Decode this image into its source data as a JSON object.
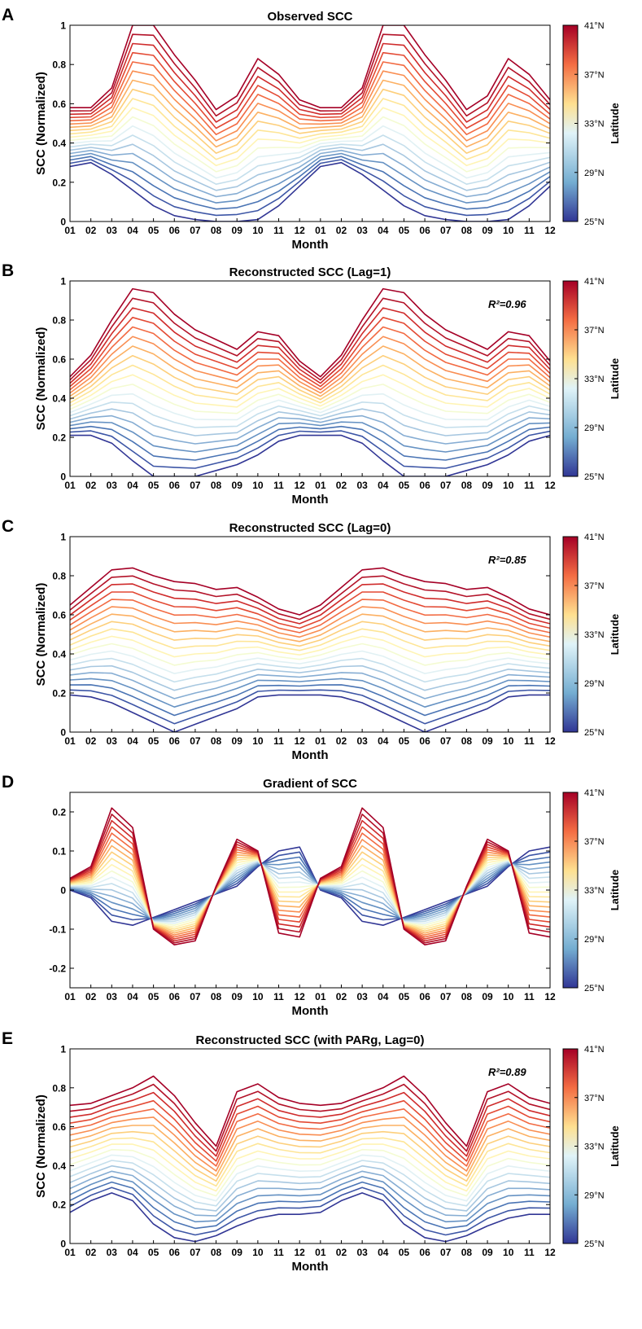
{
  "figure": {
    "legend_title": "Latitude",
    "colorbar_ticks": [
      "41°N",
      "37°N",
      "33°N",
      "29°N",
      "25°N"
    ],
    "colors": [
      "#313695",
      "#3d56a6",
      "#4a74b4",
      "#6692c3",
      "#86add3",
      "#a7c7e0",
      "#c5dfec",
      "#e1f1f4",
      "#f4fbd2",
      "#fff4b4",
      "#fee596",
      "#fdcf7b",
      "#fcb062",
      "#f98e52",
      "#f26a42",
      "#e34933",
      "#cf2b2b",
      "#b31228",
      "#a50026"
    ],
    "colorbar_stops": [
      "#313695",
      "#74add1",
      "#e0f3f8",
      "#fee090",
      "#f46d43",
      "#a50026"
    ]
  },
  "chart_data": [
    {
      "panel": "A",
      "type": "line",
      "title": "Observed SCC",
      "xlabel": "Month",
      "ylabel": "SCC (Normalized)",
      "ylim": [
        0,
        1
      ],
      "yticks": [
        "0",
        "0.2",
        "0.4",
        "0.6",
        "0.8",
        "1"
      ],
      "months": [
        "01",
        "02",
        "03",
        "04",
        "05",
        "06",
        "07",
        "08",
        "09",
        "10",
        "11",
        "12",
        "01",
        "02",
        "03",
        "04",
        "05",
        "06",
        "07",
        "08",
        "09",
        "10",
        "11",
        "12"
      ],
      "r2_label": "",
      "series_min": [
        0.28,
        0.3,
        0.24,
        0.16,
        0.08,
        0.03,
        0.01,
        0.0,
        0.0,
        0.01,
        0.08,
        0.18
      ],
      "series_max": [
        0.58,
        0.58,
        0.68,
        1.0,
        1.0,
        0.85,
        0.72,
        0.57,
        0.64,
        0.83,
        0.75,
        0.62
      ]
    },
    {
      "panel": "B",
      "type": "line",
      "title": "Reconstructed SCC (Lag=1)",
      "xlabel": "Month",
      "ylabel": "SCC (Normalized)",
      "ylim": [
        0,
        1
      ],
      "yticks": [
        "0",
        "0.2",
        "0.4",
        "0.6",
        "0.8",
        "1"
      ],
      "months": [
        "01",
        "02",
        "03",
        "04",
        "05",
        "06",
        "07",
        "08",
        "09",
        "10",
        "11",
        "12",
        "01",
        "02",
        "03",
        "04",
        "05",
        "06",
        "07",
        "08",
        "09",
        "10",
        "11",
        "12"
      ],
      "r2_label": "R²=0.96",
      "series_min": [
        0.21,
        0.21,
        0.17,
        0.08,
        0.0,
        0.0,
        0.0,
        0.03,
        0.06,
        0.11,
        0.18,
        0.21
      ],
      "series_max": [
        0.51,
        0.62,
        0.8,
        0.96,
        0.94,
        0.83,
        0.75,
        0.7,
        0.65,
        0.74,
        0.72,
        0.59
      ]
    },
    {
      "panel": "C",
      "type": "line",
      "title": "Reconstructed SCC (Lag=0)",
      "xlabel": "Month",
      "ylabel": "SCC (Normalized)",
      "ylim": [
        0,
        1
      ],
      "yticks": [
        "0",
        "0.2",
        "0.4",
        "0.6",
        "0.8",
        "1"
      ],
      "months": [
        "01",
        "02",
        "03",
        "04",
        "05",
        "06",
        "07",
        "08",
        "09",
        "10",
        "11",
        "12",
        "01",
        "02",
        "03",
        "04",
        "05",
        "06",
        "07",
        "08",
        "09",
        "10",
        "11",
        "12"
      ],
      "r2_label": "R²=0.85",
      "series_min": [
        0.19,
        0.18,
        0.15,
        0.1,
        0.05,
        0.0,
        0.04,
        0.08,
        0.12,
        0.18,
        0.19,
        0.19
      ],
      "series_max": [
        0.65,
        0.74,
        0.83,
        0.84,
        0.8,
        0.77,
        0.76,
        0.73,
        0.74,
        0.69,
        0.63,
        0.6
      ]
    },
    {
      "panel": "D",
      "type": "line",
      "title": "Gradient of SCC",
      "xlabel": "Month",
      "ylabel": "",
      "ylim": [
        -0.25,
        0.25
      ],
      "yticks": [
        "-0.2",
        "-0.1",
        "0",
        "0.1",
        "0.2"
      ],
      "months": [
        "01",
        "02",
        "03",
        "04",
        "05",
        "06",
        "07",
        "08",
        "09",
        "10",
        "11",
        "12",
        "01",
        "02",
        "03",
        "04",
        "05",
        "06",
        "07",
        "08",
        "09",
        "10",
        "11",
        "12"
      ],
      "r2_label": "",
      "series_min": [
        0.0,
        -0.02,
        -0.08,
        -0.09,
        -0.07,
        -0.05,
        -0.03,
        -0.01,
        0.01,
        0.06,
        0.1,
        0.11
      ],
      "series_max": [
        0.03,
        0.06,
        0.21,
        0.16,
        -0.1,
        -0.14,
        -0.13,
        0.01,
        0.13,
        0.1,
        -0.11,
        -0.12
      ]
    },
    {
      "panel": "E",
      "type": "line",
      "title": "Reconstructed SCC (with PARg, Lag=0)",
      "xlabel": "Month",
      "ylabel": "SCC (Normalized)",
      "ylim": [
        0,
        1
      ],
      "yticks": [
        "0",
        "0.2",
        "0.4",
        "0.6",
        "0.8",
        "1"
      ],
      "months": [
        "01",
        "02",
        "03",
        "04",
        "05",
        "06",
        "07",
        "08",
        "09",
        "10",
        "11",
        "12",
        "01",
        "02",
        "03",
        "04",
        "05",
        "06",
        "07",
        "08",
        "09",
        "10",
        "11",
        "12"
      ],
      "r2_label": "R²=0.89",
      "series_min": [
        0.16,
        0.22,
        0.26,
        0.22,
        0.1,
        0.03,
        0.01,
        0.04,
        0.09,
        0.13,
        0.15,
        0.15
      ],
      "series_max": [
        0.71,
        0.72,
        0.76,
        0.8,
        0.86,
        0.76,
        0.62,
        0.5,
        0.78,
        0.82,
        0.75,
        0.72
      ]
    }
  ]
}
